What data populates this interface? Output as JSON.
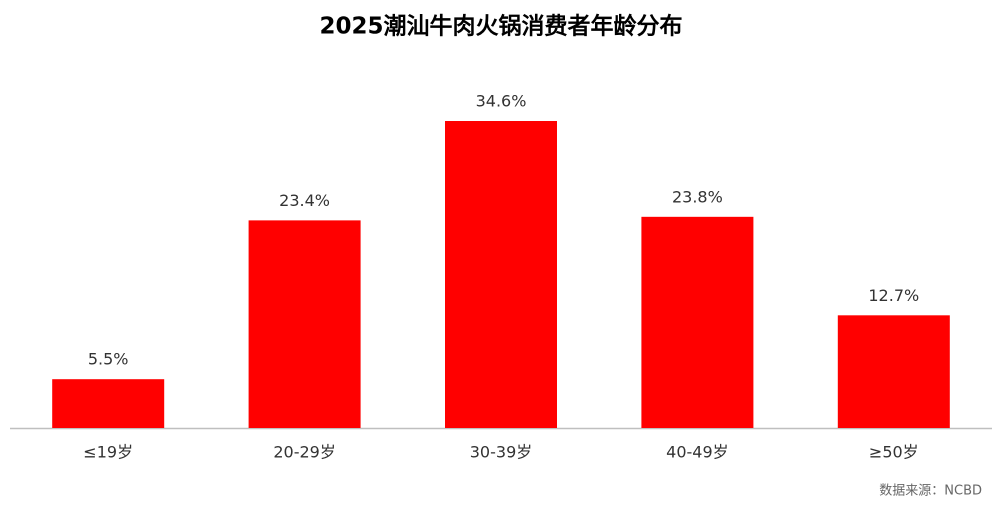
{
  "chart_data": {
    "type": "bar",
    "title": "2025潮汕牛肉火锅消费者年龄分布",
    "categories": [
      "≤19岁",
      "20-29岁",
      "30-39岁",
      "40-49岁",
      "≥50岁"
    ],
    "values": [
      5.5,
      23.4,
      34.6,
      23.8,
      12.7
    ],
    "value_labels": [
      "5.5%",
      "23.4%",
      "34.6%",
      "23.8%",
      "12.7%"
    ],
    "color": "#ff0000",
    "source": "数据来源：NCBD"
  }
}
